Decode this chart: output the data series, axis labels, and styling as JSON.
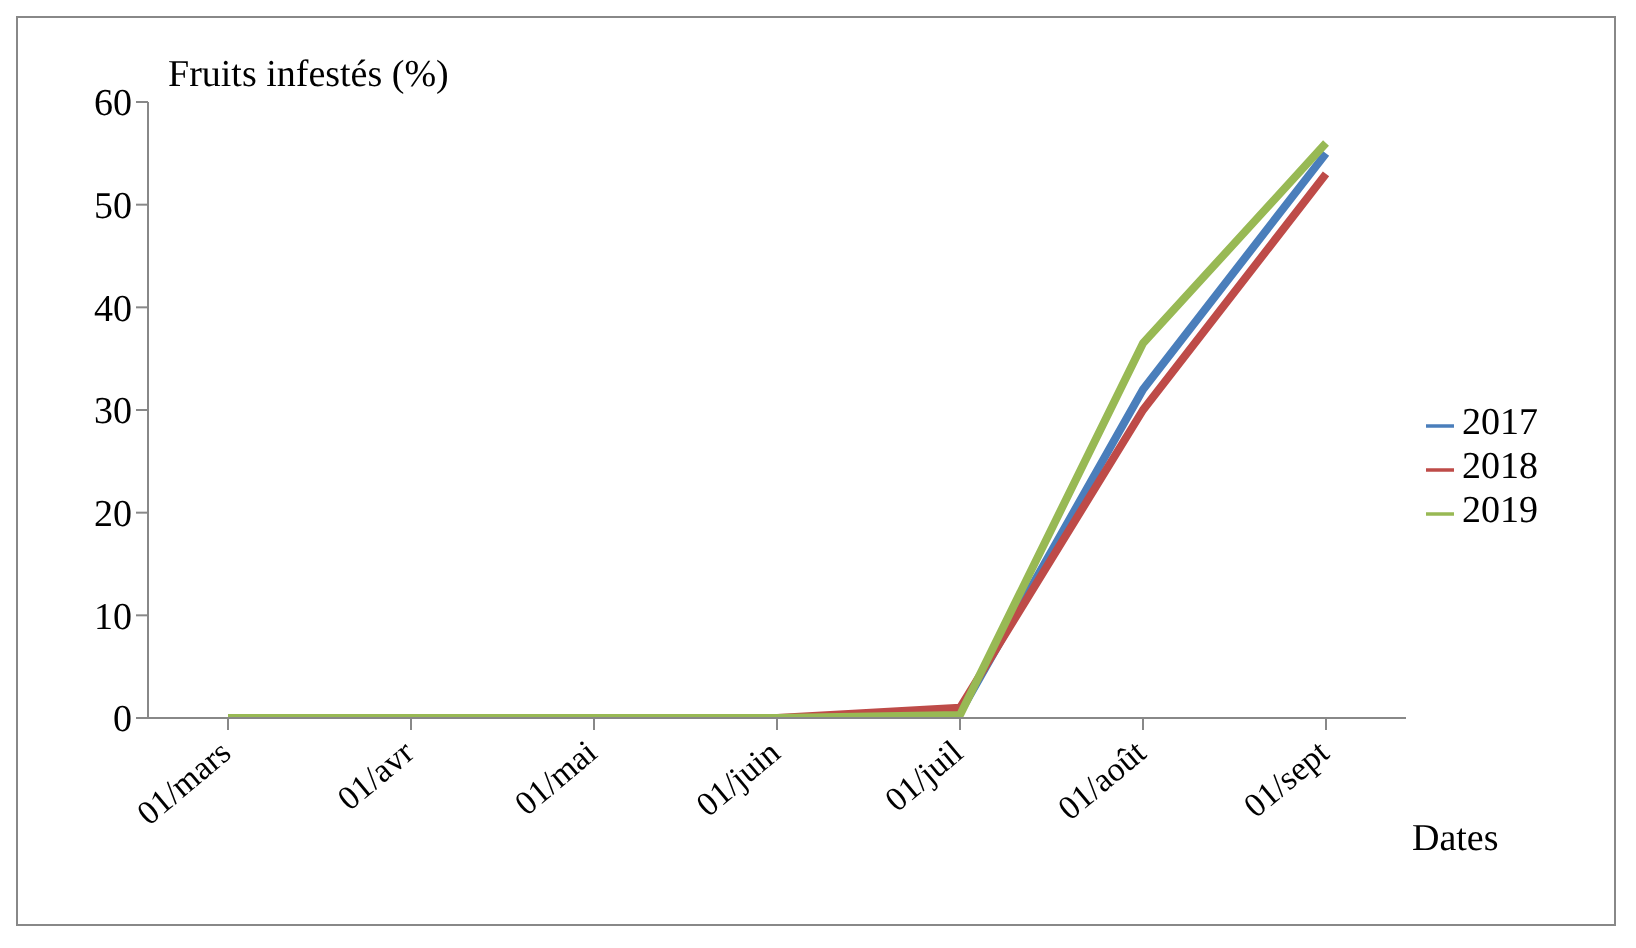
{
  "chart_data": {
    "type": "line",
    "ylabel": "Fruits infestés (%)",
    "xlabel": "Dates",
    "categories": [
      "01/mars",
      "01/avr",
      "01/mai",
      "01/juin",
      "01/juil",
      "01/août",
      "01/sept"
    ],
    "series": [
      {
        "name": "2017",
        "color": "#4a7ebb",
        "values": [
          null,
          null,
          null,
          null,
          0.5,
          32,
          55
        ]
      },
      {
        "name": "2018",
        "color": "#be4b48",
        "values": [
          null,
          null,
          0,
          0,
          1,
          30,
          53
        ]
      },
      {
        "name": "2019",
        "color": "#98b954",
        "values": [
          0,
          0,
          0,
          0,
          0.3,
          36.5,
          56
        ]
      }
    ],
    "ylim": [
      0,
      60
    ],
    "yticks": [
      0,
      10,
      20,
      30,
      40,
      50,
      60
    ],
    "grid": false,
    "legend": "right",
    "marker": "none",
    "line_style": "solid"
  }
}
